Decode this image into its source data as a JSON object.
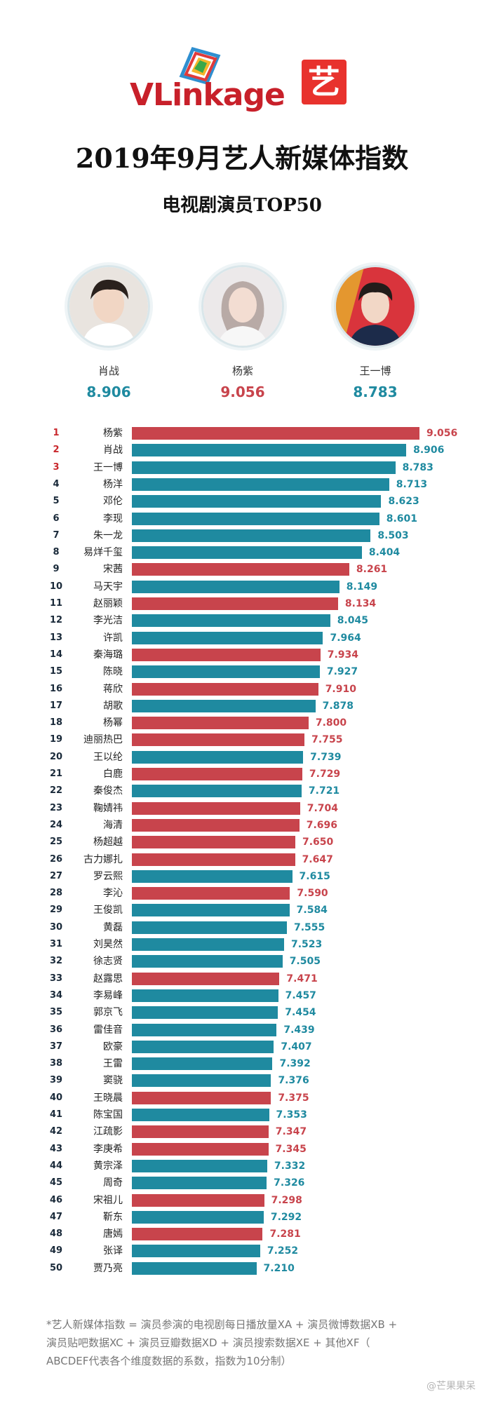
{
  "header": {
    "logo_text": "VLinkage",
    "badge_text": "艺",
    "title": "2019年9月艺人新媒体指数",
    "subtitle": "电视剧演员TOP50"
  },
  "podium": [
    {
      "name": "肖战",
      "score": "8.906",
      "color": "#1f8aa0"
    },
    {
      "name": "杨紫",
      "score": "9.056",
      "color": "#c8444c"
    },
    {
      "name": "王一博",
      "score": "8.783",
      "color": "#1f8aa0"
    }
  ],
  "colors": {
    "teal": "#1f8aa0",
    "red": "#c8444c",
    "rank_red": "#c9282d"
  },
  "chart_data": {
    "type": "bar",
    "orientation": "horizontal",
    "xlim": [
      0,
      9.056
    ],
    "categories": [
      "杨紫",
      "肖战",
      "王一博",
      "杨洋",
      "邓伦",
      "李现",
      "朱一龙",
      "易烊千玺",
      "宋茜",
      "马天宇",
      "赵丽颖",
      "李光洁",
      "许凯",
      "秦海璐",
      "陈晓",
      "蒋欣",
      "胡歌",
      "杨幂",
      "迪丽热巴",
      "王以纶",
      "白鹿",
      "秦俊杰",
      "鞠婧祎",
      "海清",
      "杨超越",
      "古力娜扎",
      "罗云熙",
      "李沁",
      "王俊凯",
      "黄磊",
      "刘昊然",
      "徐志贤",
      "赵露思",
      "李易峰",
      "郭京飞",
      "雷佳音",
      "欧豪",
      "王雷",
      "窦骁",
      "王晓晨",
      "陈宝国",
      "江疏影",
      "李庚希",
      "黄宗泽",
      "周奇",
      "宋祖儿",
      "靳东",
      "唐嫣",
      "张译",
      "贾乃亮"
    ],
    "values": [
      9.056,
      8.906,
      8.783,
      8.713,
      8.623,
      8.601,
      8.503,
      8.404,
      8.261,
      8.149,
      8.134,
      8.045,
      7.964,
      7.934,
      7.927,
      7.91,
      7.878,
      7.8,
      7.755,
      7.739,
      7.729,
      7.721,
      7.704,
      7.696,
      7.65,
      7.647,
      7.615,
      7.59,
      7.584,
      7.555,
      7.523,
      7.505,
      7.471,
      7.457,
      7.454,
      7.439,
      7.407,
      7.392,
      7.376,
      7.375,
      7.353,
      7.347,
      7.345,
      7.332,
      7.326,
      7.298,
      7.292,
      7.281,
      7.252,
      7.21
    ],
    "labels": [
      "9.056",
      "8.906",
      "8.783",
      "8.713",
      "8.623",
      "8.601",
      "8.503",
      "8.404",
      "8.261",
      "8.149",
      "8.134",
      "8.045",
      "7.964",
      "7.934",
      "7.927",
      "7.910",
      "7.878",
      "7.800",
      "7.755",
      "7.739",
      "7.729",
      "7.721",
      "7.704",
      "7.696",
      "7.650",
      "7.647",
      "7.615",
      "7.590",
      "7.584",
      "7.555",
      "7.523",
      "7.505",
      "7.471",
      "7.457",
      "7.454",
      "7.439",
      "7.407",
      "7.392",
      "7.376",
      "7.375",
      "7.353",
      "7.347",
      "7.345",
      "7.332",
      "7.326",
      "7.298",
      "7.292",
      "7.281",
      "7.252",
      "7.210"
    ],
    "bar_colors": [
      "red",
      "teal",
      "teal",
      "teal",
      "teal",
      "teal",
      "teal",
      "teal",
      "red",
      "teal",
      "red",
      "teal",
      "teal",
      "red",
      "teal",
      "red",
      "teal",
      "red",
      "red",
      "teal",
      "red",
      "teal",
      "red",
      "red",
      "red",
      "red",
      "teal",
      "red",
      "teal",
      "teal",
      "teal",
      "teal",
      "red",
      "teal",
      "teal",
      "teal",
      "teal",
      "teal",
      "teal",
      "red",
      "teal",
      "red",
      "red",
      "teal",
      "teal",
      "red",
      "teal",
      "red",
      "teal",
      "teal"
    ],
    "ranks": [
      "1",
      "2",
      "3",
      "4",
      "5",
      "6",
      "7",
      "8",
      "9",
      "10",
      "11",
      "12",
      "13",
      "14",
      "15",
      "16",
      "17",
      "18",
      "19",
      "20",
      "21",
      "22",
      "23",
      "24",
      "25",
      "26",
      "27",
      "28",
      "29",
      "30",
      "31",
      "32",
      "33",
      "34",
      "35",
      "36",
      "37",
      "38",
      "39",
      "40",
      "41",
      "42",
      "43",
      "44",
      "45",
      "46",
      "47",
      "48",
      "49",
      "50"
    ]
  },
  "footnote": {
    "line1": "*艺人新媒体指数 = 演员参演的电视剧每日播放量XA + 演员微博数据XB +",
    "line2": "演员贴吧数据XC + 演员豆瓣数据XD + 演员搜索数据XE + 其他XF（",
    "line3": "ABCDEF代表各个维度数据的系数，指数为10分制）"
  },
  "watermark": "@芒果果呆"
}
